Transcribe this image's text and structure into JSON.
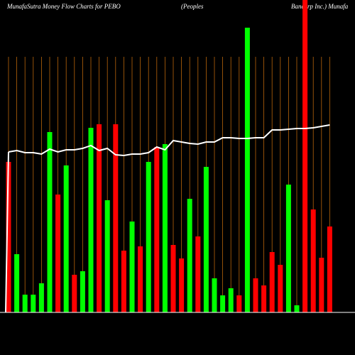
{
  "chart_data": {
    "type": "bar",
    "title": [
      "MunafaSutra  Money Flow  Charts for PEBO",
      "(Peoples",
      "Bancorp Inc.) Munafa"
    ],
    "categories": [
      null,
      null,
      null,
      null,
      null,
      null,
      null,
      null,
      null,
      null,
      null,
      null,
      null,
      null,
      null,
      null,
      null,
      null,
      null,
      null,
      null,
      null,
      null,
      null,
      null,
      null,
      null,
      null,
      null,
      null,
      null,
      null,
      null,
      null,
      null,
      null,
      null,
      null,
      null,
      null
    ],
    "values": [
      212,
      82,
      25,
      25,
      41,
      254,
      166,
      207,
      53,
      58,
      260,
      265,
      158,
      265,
      87,
      128,
      93,
      212,
      233,
      237,
      95,
      76,
      160,
      107,
      205,
      48,
      24,
      34,
      24,
      401,
      48,
      38,
      85,
      67,
      180,
      10,
      440,
      145,
      77,
      121
    ],
    "colors": [
      "#ff0000",
      "#00ff00",
      "#00ff00",
      "#00ff00",
      "#00ff00",
      "#00ff00",
      "#ff0000",
      "#00ff00",
      "#ff0000",
      "#00ff00",
      "#00ff00",
      "#ff0000",
      "#00ff00",
      "#ff0000",
      "#ff0000",
      "#00ff00",
      "#ff0000",
      "#00ff00",
      "#ff0000",
      "#00ff00",
      "#ff0000",
      "#ff0000",
      "#00ff00",
      "#ff0000",
      "#00ff00",
      "#00ff00",
      "#00ff00",
      "#00ff00",
      "#ff0000",
      "#00ff00",
      "#ff0000",
      "#ff0000",
      "#ff0000",
      "#ff0000",
      "#00ff00",
      "#00ff00",
      "#ff0000",
      "#ff0000",
      "#ff0000",
      "#ff0000"
    ],
    "line": {
      "color": "#ffffff",
      "values": [
        226,
        228,
        225,
        225,
        223,
        230,
        226,
        229,
        229,
        231,
        235,
        228,
        231,
        222,
        221,
        223,
        223,
        225,
        233,
        229,
        242,
        240,
        238,
        237,
        240,
        240,
        246,
        246,
        245,
        245,
        246,
        246,
        257,
        257,
        258,
        259,
        259,
        260,
        262,
        264
      ]
    },
    "ylim": [
      0,
      440
    ],
    "grid": true
  }
}
